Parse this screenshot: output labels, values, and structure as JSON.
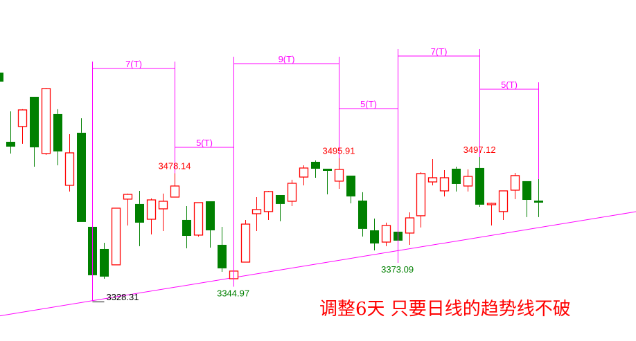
{
  "chart_data": {
    "type": "candlestick",
    "title": "",
    "colors": {
      "up": "#ff0000",
      "down": "#008000",
      "annotation": "#ff00ff",
      "trendline": "#ff00ff"
    },
    "candles": [
      {
        "o": 3596.2,
        "h": 3597.8,
        "l": 3584.0,
        "c": 3585.6
      },
      {
        "o": 3515.0,
        "h": 3550.7,
        "l": 3501.2,
        "c": 3509.3
      },
      {
        "o": 3532.9,
        "h": 3553.2,
        "l": 3512.6,
        "c": 3552.4
      },
      {
        "o": 3567.8,
        "h": 3567.8,
        "l": 3485.8,
        "c": 3508.5
      },
      {
        "o": 3501.2,
        "h": 3578.3,
        "l": 3499.6,
        "c": 3577.5
      },
      {
        "o": 3547.5,
        "h": 3553.2,
        "l": 3487.4,
        "c": 3503.7
      },
      {
        "o": 3463.9,
        "h": 3523.9,
        "l": 3456.6,
        "c": 3502.0
      },
      {
        "o": 3525.6,
        "h": 3542.6,
        "l": 3420.9,
        "c": 3420.9
      },
      {
        "o": 3415.2,
        "h": 3429.0,
        "l": 3328.31,
        "c": 3358.4
      },
      {
        "o": 3389.2,
        "h": 3396.5,
        "l": 3354.3,
        "c": 3356.8
      },
      {
        "o": 3370.6,
        "h": 3437.1,
        "l": 3370.6,
        "c": 3437.1
      },
      {
        "o": 3447.7,
        "h": 3454.2,
        "l": 3416.8,
        "c": 3453.3
      },
      {
        "o": 3442.0,
        "h": 3457.4,
        "l": 3392.5,
        "c": 3420.1
      },
      {
        "o": 3424.1,
        "h": 3448.5,
        "l": 3406.3,
        "c": 3446.8
      },
      {
        "o": 3436.3,
        "h": 3454.2,
        "l": 3410.3,
        "c": 3445.2
      },
      {
        "o": 3450.1,
        "h": 3478.14,
        "l": 3450.1,
        "c": 3463.1
      },
      {
        "o": 3423.3,
        "h": 3439.5,
        "l": 3390.0,
        "c": 3404.6
      },
      {
        "o": 3405.5,
        "h": 3443.6,
        "l": 3403.8,
        "c": 3443.6
      },
      {
        "o": 3445.2,
        "h": 3445.2,
        "l": 3390.8,
        "c": 3411.1
      },
      {
        "o": 3394.1,
        "h": 3415.2,
        "l": 3362.4,
        "c": 3366.5
      },
      {
        "o": 3354.3,
        "h": 3381.1,
        "l": 3344.97,
        "c": 3363.3
      },
      {
        "o": 3373.8,
        "h": 3423.3,
        "l": 3373.8,
        "c": 3418.4
      },
      {
        "o": 3430.6,
        "h": 3450.1,
        "l": 3410.3,
        "c": 3435.5
      },
      {
        "o": 3433.1,
        "h": 3457.4,
        "l": 3423.3,
        "c": 3456.6
      },
      {
        "o": 3452.5,
        "h": 3452.5,
        "l": 3421.7,
        "c": 3442.0
      },
      {
        "o": 3445.2,
        "h": 3470.4,
        "l": 3439.5,
        "c": 3466.3
      },
      {
        "o": 3473.6,
        "h": 3487.4,
        "l": 3463.9,
        "c": 3484.2
      },
      {
        "o": 3491.5,
        "h": 3493.1,
        "l": 3472.8,
        "c": 3483.4
      },
      {
        "o": 3483.4,
        "h": 3483.4,
        "l": 3453.3,
        "c": 3480.9
      },
      {
        "o": 3468.8,
        "h": 3495.91,
        "l": 3459.8,
        "c": 3482.6
      },
      {
        "o": 3475.3,
        "h": 3475.3,
        "l": 3442.8,
        "c": 3450.9
      },
      {
        "o": 3446.0,
        "h": 3455.8,
        "l": 3403.8,
        "c": 3412.8
      },
      {
        "o": 3411.1,
        "h": 3424.9,
        "l": 3387.6,
        "c": 3395.7
      },
      {
        "o": 3397.3,
        "h": 3420.1,
        "l": 3392.5,
        "c": 3416.8
      },
      {
        "o": 3409.5,
        "h": 3409.5,
        "l": 3373.09,
        "c": 3399.0
      },
      {
        "o": 3407.9,
        "h": 3432.2,
        "l": 3394.1,
        "c": 3425.7
      },
      {
        "o": 3428.2,
        "h": 3479.3,
        "l": 3414.4,
        "c": 3477.7
      },
      {
        "o": 3467.9,
        "h": 3494.7,
        "l": 3463.9,
        "c": 3472.8
      },
      {
        "o": 3457.4,
        "h": 3481.7,
        "l": 3450.9,
        "c": 3472.8
      },
      {
        "o": 3483.4,
        "h": 3485.8,
        "l": 3456.6,
        "c": 3465.5
      },
      {
        "o": 3463.1,
        "h": 3482.6,
        "l": 3456.6,
        "c": 3474.4
      },
      {
        "o": 3484.2,
        "h": 3497.12,
        "l": 3438.7,
        "c": 3441.2
      },
      {
        "o": 3441.2,
        "h": 3443.6,
        "l": 3416.8,
        "c": 3442.8
      },
      {
        "o": 3433.1,
        "h": 3457.4,
        "l": 3423.3,
        "c": 3457.4
      },
      {
        "o": 3458.2,
        "h": 3478.5,
        "l": 3447.7,
        "c": 3475.3
      },
      {
        "o": 3468.8,
        "h": 3468.8,
        "l": 3426.6,
        "c": 3446.8
      },
      {
        "o": 3446.0,
        "h": 3471.2,
        "l": 3426.6,
        "c": 3443.6
      }
    ],
    "price_labels": [
      {
        "bar": 9,
        "text": "3328.31",
        "kind": "low",
        "color": "#000000"
      },
      {
        "bar": 16,
        "text": "3478.14",
        "kind": "high",
        "color": "#ff0000"
      },
      {
        "bar": 21,
        "text": "3344.97",
        "kind": "low",
        "color": "#008000"
      },
      {
        "bar": 30,
        "text": "3495.91",
        "kind": "high",
        "color": "#ff0000"
      },
      {
        "bar": 35,
        "text": "3373.09",
        "kind": "low",
        "color": "#008000"
      },
      {
        "bar": 42,
        "text": "3497.12",
        "kind": "high",
        "color": "#ff0000"
      }
    ],
    "time_counts": [
      {
        "from": 9,
        "to": 16,
        "text": "7(T)"
      },
      {
        "from": 16,
        "to": 21,
        "text": "5(T)"
      },
      {
        "from": 21,
        "to": 30,
        "text": "9(T)"
      },
      {
        "from": 30,
        "to": 35,
        "text": "5(T)"
      },
      {
        "from": 35,
        "to": 42,
        "text": "7(T)"
      },
      {
        "from": 42,
        "to": 47,
        "text": "5(T)"
      }
    ],
    "trendline": [
      {
        "bar": 1,
        "price": 3310.5
      },
      {
        "bar": 55,
        "price": 3432.2
      }
    ]
  },
  "annotation": "调整6天 只要日线的趋势线不破"
}
